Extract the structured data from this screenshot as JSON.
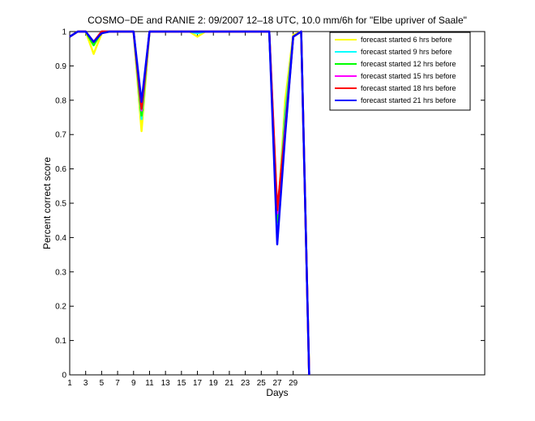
{
  "chart_data": {
    "type": "line",
    "title": "COSMO−DE and RANIE 2: 09/2007 12–18 UTC, 10.0 mm/6h for \"Elbe upriver of Saale\"",
    "xlabel": "Days",
    "ylabel": "Percent correct score",
    "xlim": [
      1,
      53
    ],
    "ylim": [
      0,
      1
    ],
    "xticks": [
      1,
      3,
      5,
      7,
      9,
      11,
      13,
      15,
      17,
      19,
      21,
      23,
      25,
      27,
      29
    ],
    "xtick_labels": [
      "1",
      "3",
      "5",
      "7",
      "9",
      "11",
      "13",
      "15",
      "17",
      "19",
      "21",
      "23",
      "25",
      "27",
      "29"
    ],
    "yticks": [
      0,
      0.1,
      0.2,
      0.3,
      0.4,
      0.5,
      0.6,
      0.7,
      0.8,
      0.9,
      1
    ],
    "ytick_labels": [
      "0",
      "0.1",
      "0.2",
      "0.3",
      "0.4",
      "0.5",
      "0.6",
      "0.7",
      "0.8",
      "0.9",
      "1"
    ],
    "grid": false,
    "legend_position": "top-right",
    "x": [
      1,
      2,
      3,
      4,
      5,
      6,
      7,
      8,
      9,
      10,
      11,
      12,
      13,
      14,
      15,
      16,
      17,
      18,
      19,
      20,
      21,
      22,
      23,
      24,
      25,
      26,
      27,
      28,
      29,
      30,
      31
    ],
    "series": [
      {
        "name": "forecast started 6 hrs before",
        "color": "#ffff00",
        "values": [
          0.985,
          1,
          1,
          0.935,
          0.995,
          1,
          1,
          1,
          1,
          0.71,
          1,
          1,
          1,
          1,
          1,
          1,
          0.985,
          1,
          1,
          1,
          1,
          1,
          1,
          1,
          1,
          1,
          0.44,
          0.8,
          0.99,
          1,
          0
        ]
      },
      {
        "name": "forecast started 9 hrs before",
        "color": "#00ffff",
        "values": [
          0.985,
          1,
          1,
          0.965,
          1,
          1,
          1,
          1,
          1,
          0.745,
          1,
          1,
          1,
          1,
          1,
          1,
          0.995,
          1,
          1,
          1,
          1,
          1,
          1,
          1,
          1,
          1,
          0.43,
          0.76,
          0.985,
          1,
          0
        ]
      },
      {
        "name": "forecast started 12 hrs before",
        "color": "#00ff00",
        "values": [
          0.985,
          1,
          1,
          0.96,
          1,
          1,
          1,
          1,
          1,
          0.755,
          1,
          1,
          1,
          1,
          1,
          1,
          1,
          1,
          1,
          1,
          1,
          1,
          1,
          1,
          1,
          1,
          0.445,
          0.74,
          0.985,
          1,
          0
        ]
      },
      {
        "name": "forecast started 15 hrs before",
        "color": "#ff00ff",
        "values": [
          0.985,
          1,
          1,
          0.97,
          1,
          1,
          1,
          1,
          1,
          0.77,
          1,
          1,
          1,
          1,
          1,
          1,
          1,
          1,
          1,
          1,
          1,
          1,
          1,
          1,
          1,
          1,
          0.47,
          0.72,
          0.985,
          1,
          0
        ]
      },
      {
        "name": "forecast started 18 hrs before",
        "color": "#ff0000",
        "values": [
          0.985,
          1,
          1,
          0.97,
          1,
          1,
          1,
          1,
          1,
          0.775,
          1,
          1,
          1,
          1,
          1,
          1,
          1,
          1,
          1,
          1,
          1,
          1,
          1,
          1,
          1,
          1,
          0.48,
          0.71,
          0.985,
          1,
          0
        ]
      },
      {
        "name": "forecast started 21 hrs before",
        "color": "#0000ff",
        "values": [
          0.985,
          1,
          1,
          0.97,
          0.995,
          1,
          1,
          1,
          1,
          0.795,
          1,
          1,
          1,
          1,
          1,
          1,
          1,
          1,
          1,
          1,
          1,
          1,
          1,
          1,
          1,
          1,
          0.38,
          0.7,
          0.985,
          1,
          0
        ]
      }
    ]
  }
}
